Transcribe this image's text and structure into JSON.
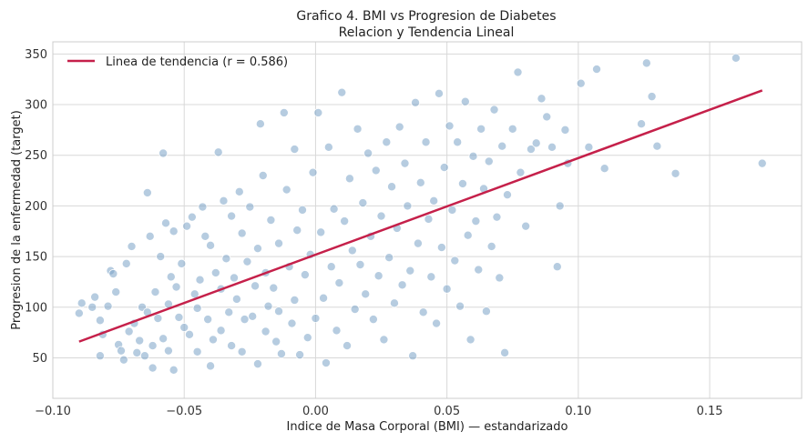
{
  "chart_data": {
    "type": "scatter",
    "title": "Grafico 4. BMI vs Progresion de Diabetes",
    "subtitle": "Relacion y Tendencia Lineal",
    "xlabel": "Indice de Masa Corporal (BMI) — estandarizado",
    "ylabel": "Progresion de la enfermedad (target)",
    "xlim": [
      -0.1,
      0.185
    ],
    "ylim": [
      10,
      362
    ],
    "x_ticks": [
      -0.1,
      -0.05,
      0.0,
      0.05,
      0.1,
      0.15
    ],
    "x_tick_labels": [
      "−0.10",
      "−0.05",
      "0.00",
      "0.05",
      "0.10",
      "0.15"
    ],
    "y_ticks": [
      50,
      100,
      150,
      200,
      250,
      300,
      350
    ],
    "y_tick_labels": [
      "50",
      "100",
      "150",
      "200",
      "250",
      "300",
      "350"
    ],
    "grid": true,
    "legend_position": "top-left",
    "series": [
      {
        "name": "Linea de tendencia (r = 0.586)",
        "type": "line",
        "color": "#c5204a",
        "x": [
          -0.09,
          0.17
        ],
        "y": [
          66,
          314
        ]
      },
      {
        "type": "scatter",
        "color": "#7aa3c6",
        "points": [
          [
            -0.09,
            94
          ],
          [
            -0.089,
            104
          ],
          [
            -0.085,
            100
          ],
          [
            -0.084,
            110
          ],
          [
            -0.082,
            87
          ],
          [
            -0.082,
            52
          ],
          [
            -0.081,
            73
          ],
          [
            -0.079,
            101
          ],
          [
            -0.078,
            136
          ],
          [
            -0.077,
            133
          ],
          [
            -0.076,
            115
          ],
          [
            -0.075,
            63
          ],
          [
            -0.074,
            57
          ],
          [
            -0.073,
            48
          ],
          [
            -0.072,
            143
          ],
          [
            -0.071,
            76
          ],
          [
            -0.07,
            160
          ],
          [
            -0.069,
            84
          ],
          [
            -0.068,
            55
          ],
          [
            -0.067,
            67
          ],
          [
            -0.066,
            100
          ],
          [
            -0.065,
            52
          ],
          [
            -0.064,
            213
          ],
          [
            -0.064,
            95
          ],
          [
            -0.063,
            170
          ],
          [
            -0.062,
            62
          ],
          [
            -0.062,
            40
          ],
          [
            -0.061,
            115
          ],
          [
            -0.06,
            89
          ],
          [
            -0.059,
            150
          ],
          [
            -0.058,
            252
          ],
          [
            -0.058,
            69
          ],
          [
            -0.057,
            183
          ],
          [
            -0.056,
            103
          ],
          [
            -0.056,
            57
          ],
          [
            -0.055,
            130
          ],
          [
            -0.054,
            175
          ],
          [
            -0.054,
            38
          ],
          [
            -0.053,
            120
          ],
          [
            -0.052,
            90
          ],
          [
            -0.051,
            143
          ],
          [
            -0.05,
            80
          ],
          [
            -0.049,
            180
          ],
          [
            -0.048,
            73
          ],
          [
            -0.047,
            189
          ],
          [
            -0.046,
            113
          ],
          [
            -0.045,
            99
          ],
          [
            -0.045,
            56
          ],
          [
            -0.044,
            127
          ],
          [
            -0.043,
            199
          ],
          [
            -0.042,
            170
          ],
          [
            -0.041,
            88
          ],
          [
            -0.04,
            161
          ],
          [
            -0.04,
            42
          ],
          [
            -0.039,
            68
          ],
          [
            -0.038,
            134
          ],
          [
            -0.037,
            253
          ],
          [
            -0.036,
            118
          ],
          [
            -0.036,
            77
          ],
          [
            -0.035,
            205
          ],
          [
            -0.034,
            148
          ],
          [
            -0.033,
            95
          ],
          [
            -0.032,
            190
          ],
          [
            -0.032,
            62
          ],
          [
            -0.031,
            129
          ],
          [
            -0.03,
            108
          ],
          [
            -0.029,
            214
          ],
          [
            -0.028,
            56
          ],
          [
            -0.028,
            173
          ],
          [
            -0.027,
            88
          ],
          [
            -0.026,
            145
          ],
          [
            -0.025,
            199
          ],
          [
            -0.024,
            91
          ],
          [
            -0.023,
            121
          ],
          [
            -0.022,
            158
          ],
          [
            -0.022,
            44
          ],
          [
            -0.021,
            281
          ],
          [
            -0.02,
            230
          ],
          [
            -0.019,
            134
          ],
          [
            -0.019,
            76
          ],
          [
            -0.018,
            101
          ],
          [
            -0.017,
            186
          ],
          [
            -0.016,
            119
          ],
          [
            -0.015,
            66
          ],
          [
            -0.014,
            163
          ],
          [
            -0.014,
            96
          ],
          [
            -0.013,
            54
          ],
          [
            -0.012,
            292
          ],
          [
            -0.011,
            216
          ],
          [
            -0.01,
            140
          ],
          [
            -0.009,
            84
          ],
          [
            -0.008,
            256
          ],
          [
            -0.008,
            107
          ],
          [
            -0.007,
            176
          ],
          [
            -0.006,
            53
          ],
          [
            -0.005,
            196
          ],
          [
            -0.004,
            132
          ],
          [
            -0.003,
            70
          ],
          [
            -0.002,
            152
          ],
          [
            -0.001,
            233
          ],
          [
            0.0,
            89
          ],
          [
            0.001,
            292
          ],
          [
            0.002,
            174
          ],
          [
            0.003,
            109
          ],
          [
            0.004,
            45
          ],
          [
            0.005,
            258
          ],
          [
            0.006,
            140
          ],
          [
            0.007,
            197
          ],
          [
            0.008,
            77
          ],
          [
            0.009,
            124
          ],
          [
            0.01,
            312
          ],
          [
            0.011,
            185
          ],
          [
            0.012,
            62
          ],
          [
            0.013,
            227
          ],
          [
            0.014,
            156
          ],
          [
            0.015,
            98
          ],
          [
            0.016,
            276
          ],
          [
            0.017,
            142
          ],
          [
            0.018,
            203
          ],
          [
            0.019,
            113
          ],
          [
            0.02,
            252
          ],
          [
            0.021,
            170
          ],
          [
            0.022,
            88
          ],
          [
            0.023,
            235
          ],
          [
            0.024,
            131
          ],
          [
            0.025,
            190
          ],
          [
            0.026,
            68
          ],
          [
            0.027,
            263
          ],
          [
            0.028,
            149
          ],
          [
            0.029,
            219
          ],
          [
            0.03,
            104
          ],
          [
            0.031,
            178
          ],
          [
            0.032,
            278
          ],
          [
            0.033,
            122
          ],
          [
            0.034,
            242
          ],
          [
            0.035,
            200
          ],
          [
            0.036,
            136
          ],
          [
            0.037,
            52
          ],
          [
            0.038,
            302
          ],
          [
            0.039,
            163
          ],
          [
            0.04,
            223
          ],
          [
            0.041,
            95
          ],
          [
            0.042,
            263
          ],
          [
            0.043,
            187
          ],
          [
            0.044,
            130
          ],
          [
            0.045,
            205
          ],
          [
            0.046,
            84
          ],
          [
            0.047,
            311
          ],
          [
            0.048,
            159
          ],
          [
            0.049,
            238
          ],
          [
            0.05,
            118
          ],
          [
            0.051,
            279
          ],
          [
            0.052,
            196
          ],
          [
            0.053,
            146
          ],
          [
            0.054,
            263
          ],
          [
            0.055,
            101
          ],
          [
            0.056,
            222
          ],
          [
            0.057,
            303
          ],
          [
            0.058,
            171
          ],
          [
            0.059,
            68
          ],
          [
            0.06,
            249
          ],
          [
            0.061,
            185
          ],
          [
            0.062,
            137
          ],
          [
            0.063,
            276
          ],
          [
            0.064,
            217
          ],
          [
            0.065,
            96
          ],
          [
            0.066,
            244
          ],
          [
            0.067,
            160
          ],
          [
            0.068,
            295
          ],
          [
            0.069,
            189
          ],
          [
            0.07,
            129
          ],
          [
            0.071,
            259
          ],
          [
            0.072,
            55
          ],
          [
            0.073,
            211
          ],
          [
            0.075,
            276
          ],
          [
            0.077,
            332
          ],
          [
            0.078,
            233
          ],
          [
            0.08,
            180
          ],
          [
            0.082,
            256
          ],
          [
            0.084,
            262
          ],
          [
            0.086,
            306
          ],
          [
            0.088,
            288
          ],
          [
            0.09,
            258
          ],
          [
            0.092,
            140
          ],
          [
            0.093,
            200
          ],
          [
            0.095,
            275
          ],
          [
            0.096,
            242
          ],
          [
            0.101,
            321
          ],
          [
            0.104,
            258
          ],
          [
            0.107,
            335
          ],
          [
            0.11,
            237
          ],
          [
            0.124,
            281
          ],
          [
            0.126,
            341
          ],
          [
            0.128,
            308
          ],
          [
            0.13,
            259
          ],
          [
            0.137,
            232
          ],
          [
            0.16,
            346
          ],
          [
            0.17,
            242
          ]
        ]
      }
    ]
  }
}
